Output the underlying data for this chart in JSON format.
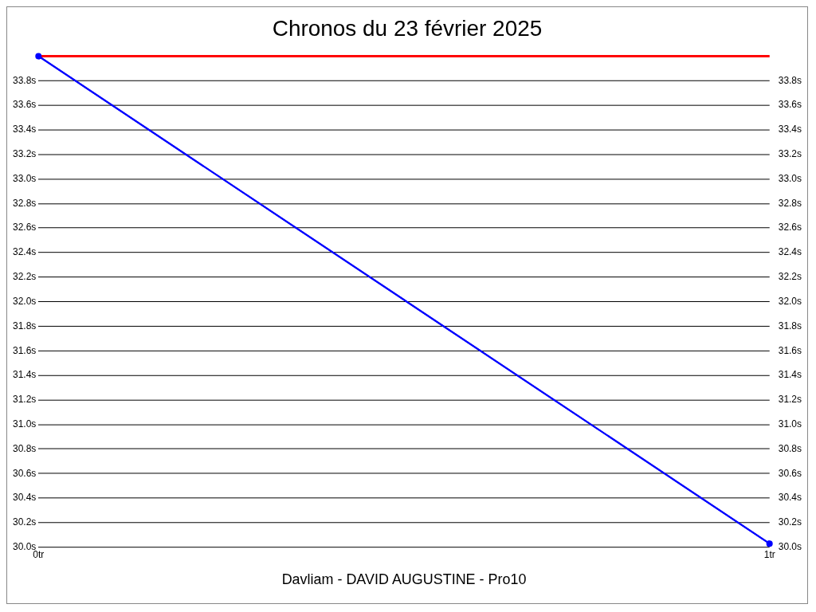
{
  "chart_data": {
    "type": "line",
    "title": "Chronos du 23 février 2025",
    "x": [
      0,
      1
    ],
    "series": [
      {
        "color": "#0000ff",
        "values": [
          34.0,
          30.03
        ]
      }
    ],
    "xlim": [
      0,
      1
    ],
    "xticks": [
      {
        "value": 0,
        "label": "0tr"
      },
      {
        "value": 1,
        "label": "1tr"
      }
    ],
    "ylim": [
      30.0,
      34.0
    ],
    "yticks": [
      {
        "value": 30.0,
        "label": "30.0s"
      },
      {
        "value": 30.2,
        "label": "30.2s"
      },
      {
        "value": 30.4,
        "label": "30.4s"
      },
      {
        "value": 30.6,
        "label": "30.6s"
      },
      {
        "value": 30.8,
        "label": "30.8s"
      },
      {
        "value": 31.0,
        "label": "31.0s"
      },
      {
        "value": 31.2,
        "label": "31.2s"
      },
      {
        "value": 31.4,
        "label": "31.4s"
      },
      {
        "value": 31.6,
        "label": "31.6s"
      },
      {
        "value": 31.8,
        "label": "31.8s"
      },
      {
        "value": 32.0,
        "label": "32.0s"
      },
      {
        "value": 32.2,
        "label": "32.2s"
      },
      {
        "value": 32.4,
        "label": "32.4s"
      },
      {
        "value": 32.6,
        "label": "32.6s"
      },
      {
        "value": 32.8,
        "label": "32.8s"
      },
      {
        "value": 33.0,
        "label": "33.0s"
      },
      {
        "value": 33.2,
        "label": "33.2s"
      },
      {
        "value": 33.4,
        "label": "33.4s"
      },
      {
        "value": 33.6,
        "label": "33.6s"
      },
      {
        "value": 33.8,
        "label": "33.8s"
      }
    ],
    "y2lim": [
      30.0,
      34.0
    ],
    "y2ticks": [
      {
        "value": 30.0,
        "label": "30.0s"
      },
      {
        "value": 30.2,
        "label": "30.2s"
      },
      {
        "value": 30.4,
        "label": "30.4s"
      },
      {
        "value": 30.6,
        "label": "30.6s"
      },
      {
        "value": 30.8,
        "label": "30.8s"
      },
      {
        "value": 31.0,
        "label": "31.0s"
      },
      {
        "value": 31.2,
        "label": "31.2s"
      },
      {
        "value": 31.4,
        "label": "31.4s"
      },
      {
        "value": 31.6,
        "label": "31.6s"
      },
      {
        "value": 31.8,
        "label": "31.8s"
      },
      {
        "value": 32.0,
        "label": "32.0s"
      },
      {
        "value": 32.2,
        "label": "32.2s"
      },
      {
        "value": 32.4,
        "label": "32.4s"
      },
      {
        "value": 32.6,
        "label": "32.6s"
      },
      {
        "value": 32.8,
        "label": "32.8s"
      },
      {
        "value": 33.0,
        "label": "33.0s"
      },
      {
        "value": 33.2,
        "label": "33.2s"
      },
      {
        "value": 33.4,
        "label": "33.4s"
      },
      {
        "value": 33.6,
        "label": "33.6s"
      },
      {
        "value": 33.8,
        "label": "33.8s"
      }
    ],
    "ref_lines": [
      {
        "axis": "y",
        "value": 34.0,
        "color": "#ff0000"
      }
    ],
    "grid": "y",
    "marker": "circle",
    "line_style": "solid",
    "legend": false,
    "annotations": [
      "Davliam - DAVID AUGUSTINE - Pro10"
    ]
  }
}
